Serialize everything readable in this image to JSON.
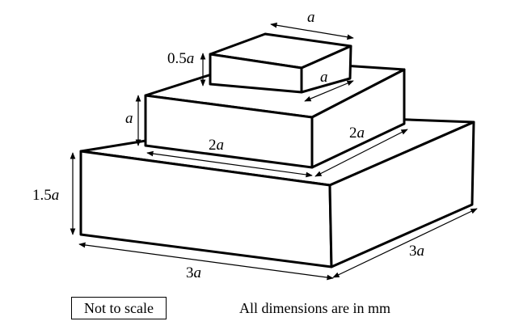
{
  "labels": {
    "top_width": {
      "num": "",
      "var": "a"
    },
    "top_depth": {
      "num": "",
      "var": "a"
    },
    "top_height": {
      "num": "0.5",
      "var": "a"
    },
    "middle_height": {
      "num": "",
      "var": "a"
    },
    "middle_width": {
      "num": "2",
      "var": "a"
    },
    "middle_depth": {
      "num": "2",
      "var": "a"
    },
    "bottom_height": {
      "num": "1.5",
      "var": "a"
    },
    "bottom_width": {
      "num": "3",
      "var": "a"
    },
    "bottom_depth": {
      "num": "3",
      "var": "a"
    }
  },
  "notes": {
    "scale": "Not to scale",
    "units": "All dimensions are in mm"
  }
}
